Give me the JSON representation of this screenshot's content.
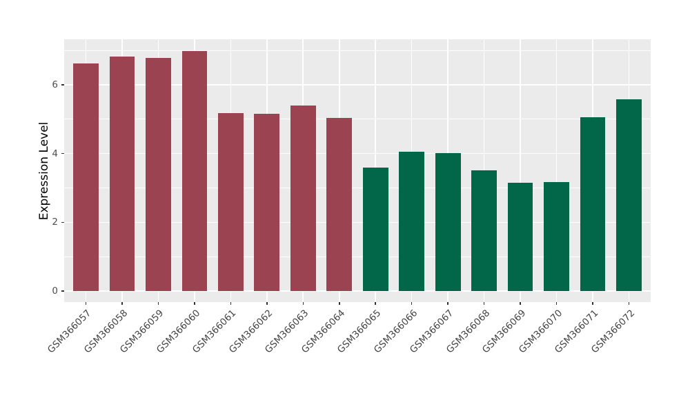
{
  "chart_data": {
    "type": "bar",
    "ylabel": "Expression Level",
    "xlabel": "",
    "categories": [
      "GSM366057",
      "GSM366058",
      "GSM366059",
      "GSM366060",
      "GSM366061",
      "GSM366062",
      "GSM366063",
      "GSM366064",
      "GSM366065",
      "GSM366066",
      "GSM366067",
      "GSM366068",
      "GSM366069",
      "GSM366070",
      "GSM366071",
      "GSM366072"
    ],
    "values": [
      6.61,
      6.81,
      6.78,
      6.98,
      5.18,
      5.15,
      5.39,
      5.03,
      3.6,
      4.06,
      4.02,
      3.51,
      3.15,
      3.17,
      5.06,
      5.57
    ],
    "bar_colors": [
      "#9C4352",
      "#9C4352",
      "#9C4352",
      "#9C4352",
      "#9C4352",
      "#9C4352",
      "#9C4352",
      "#9C4352",
      "#026649",
      "#026649",
      "#026649",
      "#026649",
      "#026649",
      "#026649",
      "#026649",
      "#026649"
    ],
    "group_colors": {
      "group1_maroon": "#9C4352",
      "group2_green": "#026649"
    },
    "yticks": [
      0,
      2,
      4,
      6
    ],
    "yticks_minor": [
      1,
      3,
      5,
      7
    ],
    "ylim": [
      -0.32,
      7.32
    ],
    "x_tick_rotation": 45,
    "legend": "none",
    "grid": "on",
    "panel_background": "#EBEBEB",
    "grid_color": "#FFFFFF"
  }
}
